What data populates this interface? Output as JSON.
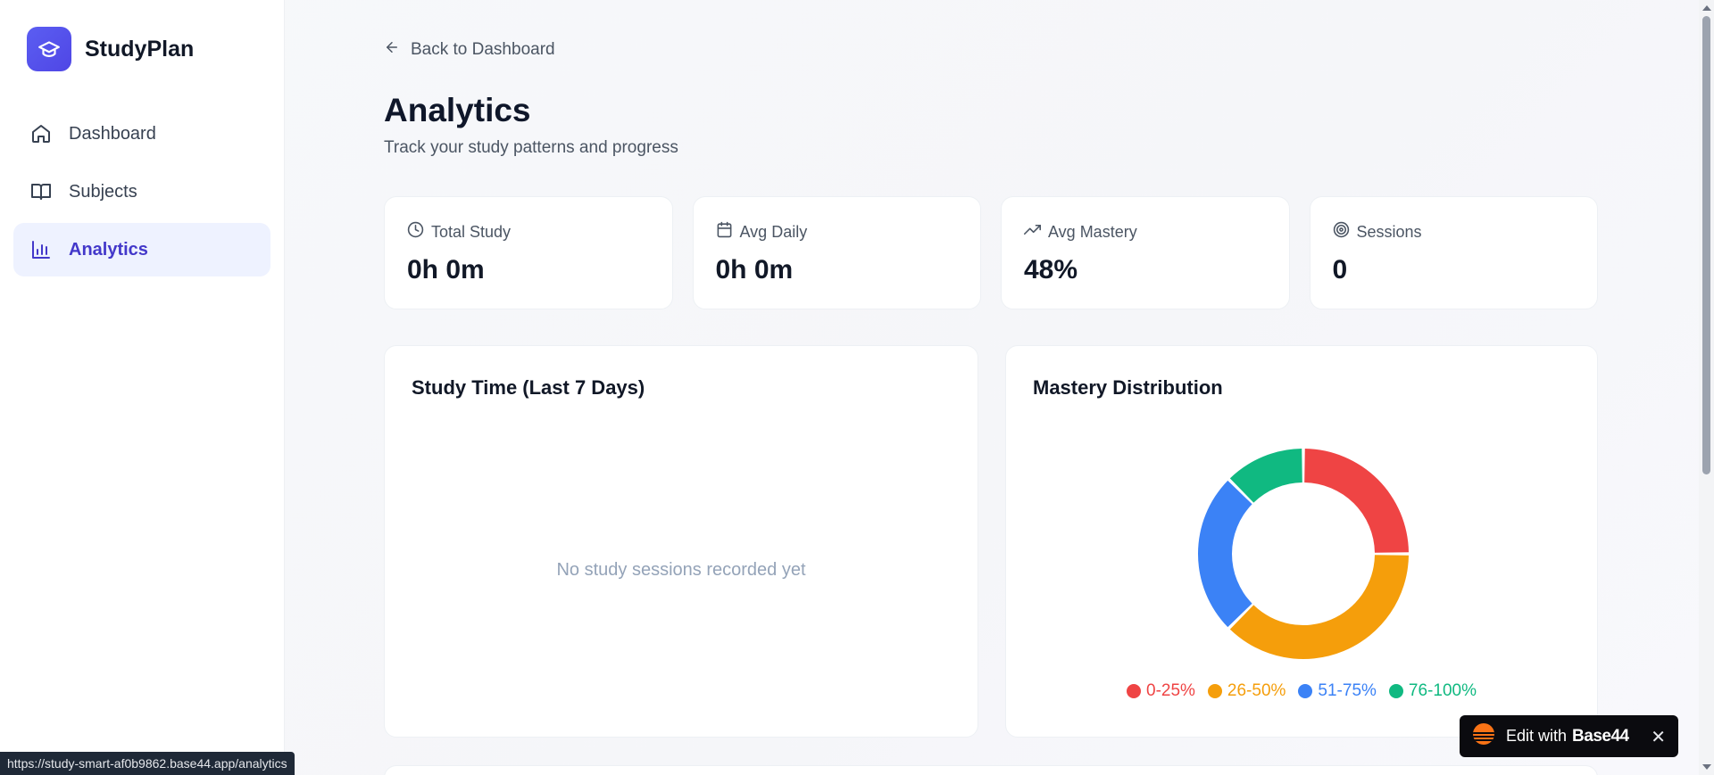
{
  "brand": {
    "name": "StudyPlan",
    "icon": "graduation-cap-icon",
    "color": "#4f46e5"
  },
  "sidebar": {
    "items": [
      {
        "label": "Dashboard",
        "icon": "home-icon",
        "active": false
      },
      {
        "label": "Subjects",
        "icon": "book-icon",
        "active": false
      },
      {
        "label": "Analytics",
        "icon": "bar-chart-icon",
        "active": true
      }
    ]
  },
  "header": {
    "back_label": "Back to Dashboard",
    "title": "Analytics",
    "subtitle": "Track your study patterns and progress"
  },
  "stats": [
    {
      "label": "Total Study",
      "value": "0h 0m",
      "icon": "clock-icon"
    },
    {
      "label": "Avg Daily",
      "value": "0h 0m",
      "icon": "calendar-icon"
    },
    {
      "label": "Avg Mastery",
      "value": "48%",
      "icon": "trending-up-icon"
    },
    {
      "label": "Sessions",
      "value": "0",
      "icon": "target-icon"
    }
  ],
  "study_time": {
    "title": "Study Time (Last 7 Days)",
    "empty_message": "No study sessions recorded yet"
  },
  "mastery": {
    "title": "Mastery Distribution"
  },
  "chart_data": {
    "type": "pie",
    "title": "Mastery Distribution",
    "categories": [
      "0-25%",
      "26-50%",
      "51-75%",
      "76-100%"
    ],
    "values": [
      2,
      3,
      2,
      1
    ],
    "colors": [
      "#ef4444",
      "#f59e0b",
      "#3b82f6",
      "#10b981"
    ],
    "legend": "bottom",
    "donut": true
  },
  "status_url": "https://study-smart-af0b9862.base44.app/analytics",
  "badge": {
    "prefix": "Edit with",
    "brand": "Base44",
    "close": "✕"
  }
}
